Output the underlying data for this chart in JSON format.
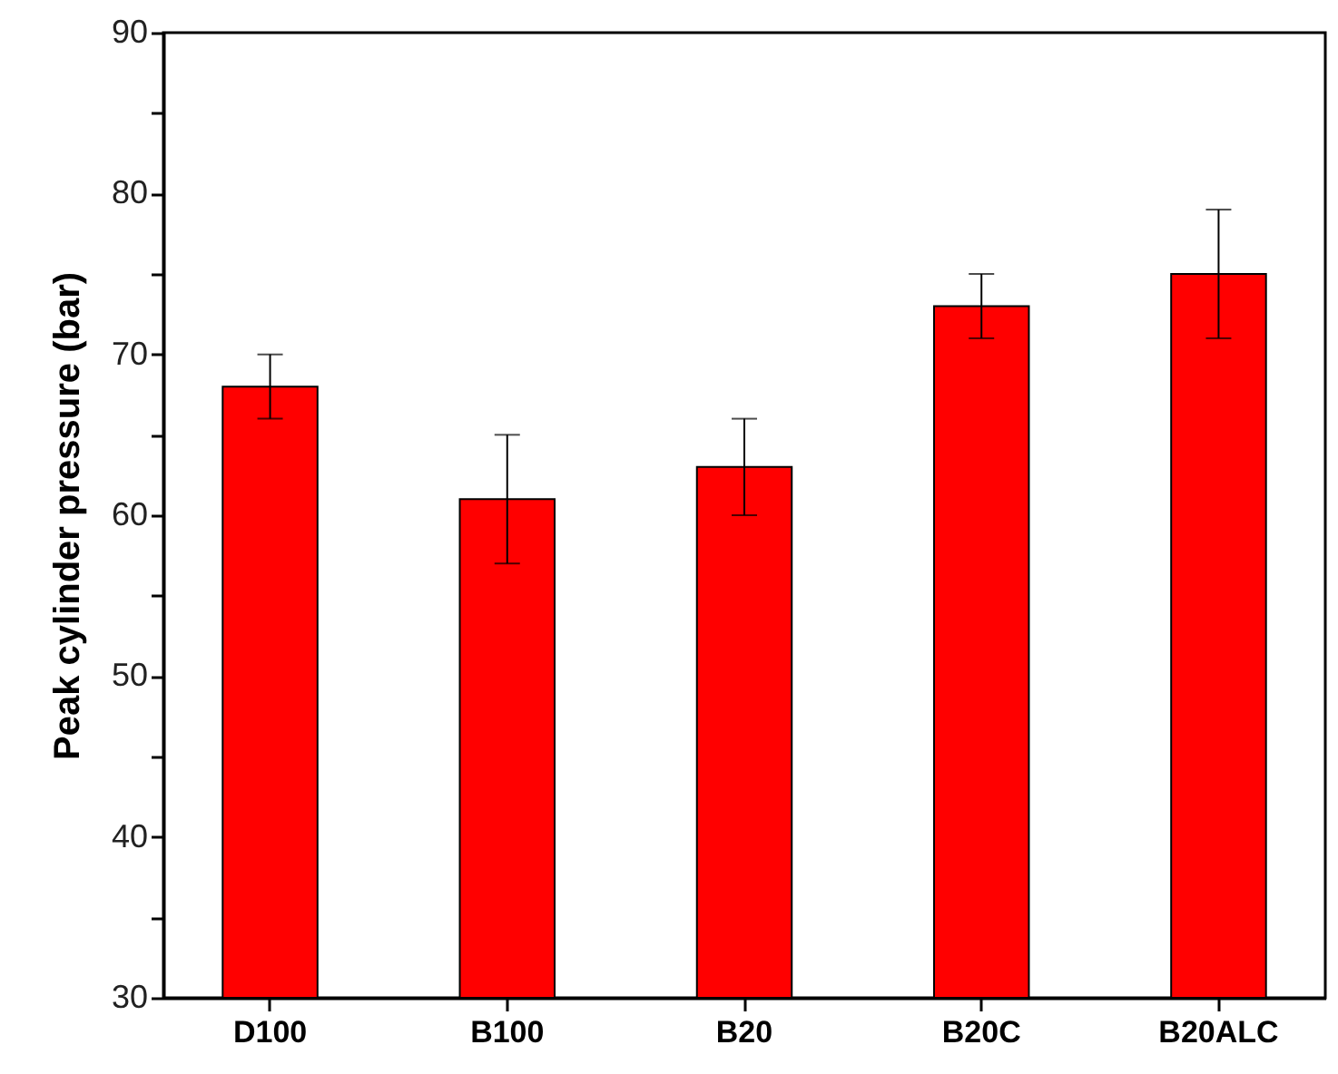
{
  "chart_data": {
    "type": "bar",
    "ylabel": "Peak cylinder pressure (bar)",
    "categories": [
      "D100",
      "B100",
      "B20",
      "B20C",
      "B20ALC"
    ],
    "values": [
      68,
      61,
      63,
      73,
      75
    ],
    "errors": [
      2,
      4,
      3,
      2,
      4
    ],
    "color": "#ff0000",
    "ylim": [
      30,
      90
    ],
    "yticks": [
      30,
      {
        "value": 35,
        "label": null
      },
      40,
      {
        "value": 45,
        "label": null
      },
      50,
      {
        "value": 55,
        "label": null
      },
      60,
      {
        "value": 65,
        "label": null
      },
      70,
      {
        "value": 75,
        "label": null
      },
      80,
      {
        "value": 85,
        "label": null
      },
      90
    ],
    "grid": false
  }
}
